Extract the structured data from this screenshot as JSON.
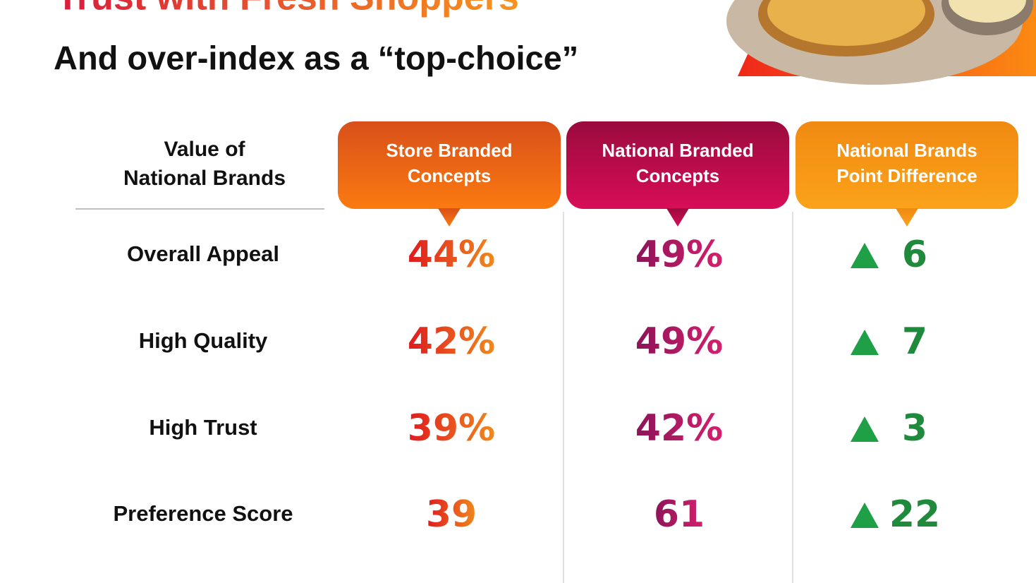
{
  "header": {
    "title": "Trust with Fresh Shoppers",
    "subtitle": "And over-index as a “top-choice”"
  },
  "table": {
    "corner_header": [
      "Value of",
      "National Brands"
    ],
    "columns": [
      [
        "Store Branded",
        "Concepts"
      ],
      [
        "National Branded",
        "Concepts"
      ],
      [
        "National Brands",
        "Point Difference"
      ]
    ],
    "rows": [
      [
        "Overall Appeal",
        "44%",
        "49%",
        "6"
      ],
      [
        "High Quality",
        "42%",
        "49%",
        "7"
      ],
      [
        "High Trust",
        "39%",
        "42%",
        "3"
      ],
      [
        "Preference Score",
        "39",
        "61",
        "22"
      ]
    ]
  }
}
